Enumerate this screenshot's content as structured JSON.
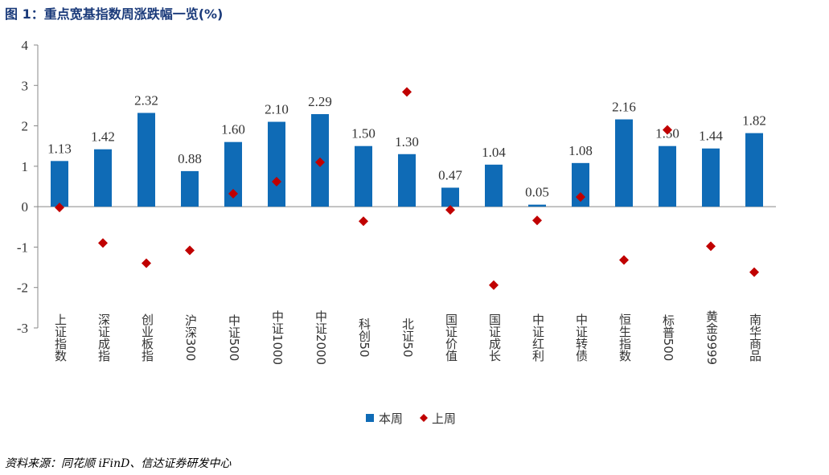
{
  "title": "图 1：重点宽基指数周涨跌幅一览(%)",
  "source": "资料来源：同花顺 iFinD、信达证券研发中心",
  "chart_data": {
    "type": "bar",
    "categories": [
      "上证指数",
      "深证成指",
      "创业板指",
      "沪深300",
      "中证500",
      "中证1000",
      "中证2000",
      "科创50",
      "北证50",
      "国证价值",
      "国证成长",
      "中证红利",
      "中证转债",
      "恒生指数",
      "标普500",
      "黄金9999",
      "南华商品"
    ],
    "series": [
      {
        "name": "本周",
        "kind": "bar",
        "color": "#0f6bb6",
        "values": [
          1.13,
          1.42,
          2.32,
          0.88,
          1.6,
          2.1,
          2.29,
          1.5,
          1.3,
          0.47,
          1.04,
          0.05,
          1.08,
          2.16,
          1.5,
          1.44,
          1.82
        ]
      },
      {
        "name": "上周",
        "kind": "marker",
        "color": "#c00000",
        "values": [
          -0.02,
          -0.9,
          -1.4,
          -1.08,
          0.32,
          0.62,
          1.1,
          -0.36,
          2.84,
          -0.08,
          -1.94,
          -0.34,
          0.24,
          -1.32,
          1.9,
          -0.98,
          -1.62
        ]
      }
    ],
    "data_labels": [
      "1.13",
      "1.42",
      "2.32",
      "0.88",
      "1.60",
      "2.10",
      "2.29",
      "1.50",
      "1.30",
      "0.47",
      "1.04",
      "0.05",
      "1.08",
      "2.16",
      "1.50",
      "1.44",
      "1.82"
    ],
    "ylim": [
      -3,
      4
    ],
    "yticks": [
      "-3",
      "-2",
      "-1",
      "0",
      "1",
      "2",
      "3",
      "4"
    ],
    "grid": false,
    "legend_position": "bottom"
  }
}
